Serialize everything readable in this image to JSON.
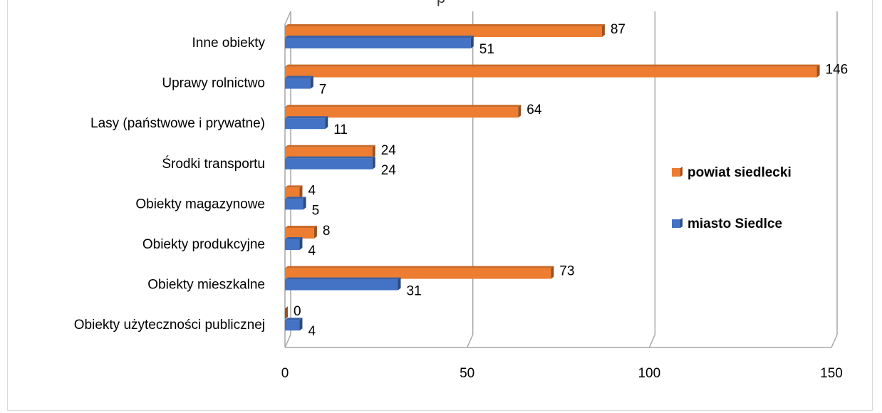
{
  "chart_data": {
    "type": "bar",
    "orientation": "horizontal",
    "title": "p",
    "categories": [
      "Inne obiekty",
      "Uprawy rolnictwo",
      "Lasy (państwowe i prywatne)",
      "Środki transportu",
      "Obiekty magazynowe",
      "Obiekty produkcyjne",
      "Obiekty mieszkalne",
      "Obiekty użyteczności publicznej"
    ],
    "series": [
      {
        "name": "powiat siedlecki",
        "color": "#ED7D31",
        "values": [
          87,
          146,
          64,
          24,
          4,
          8,
          73,
          0
        ]
      },
      {
        "name": "miasto Siedlce",
        "color": "#4472C4",
        "values": [
          51,
          7,
          11,
          24,
          5,
          4,
          31,
          4
        ]
      }
    ],
    "xlim": [
      0,
      150
    ],
    "xticks": [
      0,
      50,
      100,
      150
    ],
    "grid": true,
    "legend_position": "right",
    "effect": "3d"
  }
}
